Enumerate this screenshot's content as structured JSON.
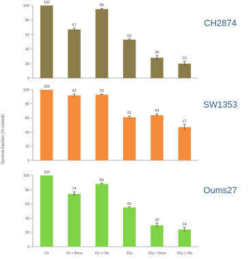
{
  "figure": {
    "ylabel": "Survival fraction (% control)"
  },
  "chart_data": [
    {
      "type": "bar",
      "title": "CH2874",
      "categories": [
        "Ctr",
        "Ctr + Roca",
        "Ctr + Ola",
        "2Gy",
        "2Gy + Roca",
        "2Gy + Ola"
      ],
      "values": [
        100,
        67,
        95,
        53,
        28,
        20
      ],
      "data_labels": [
        "100",
        "67",
        "95",
        "53",
        "28",
        "20"
      ],
      "errors": [
        0,
        2,
        1,
        1,
        3,
        3
      ],
      "ylim": [
        0,
        100
      ],
      "yticks": [
        "0",
        "20",
        "40",
        "60",
        "80",
        "100"
      ],
      "show_xticklabels": false,
      "color": "#8b7d4a",
      "grid": false
    },
    {
      "type": "bar",
      "title": "SW1353",
      "categories": [
        "Ctr",
        "Ctr + Roca",
        "Ctr + Ola",
        "2Gy",
        "2Gy + Roca",
        "2Gy + Ola"
      ],
      "values": [
        100,
        92,
        93,
        61,
        64,
        47
      ],
      "data_labels": [
        "100",
        "92",
        "93",
        "61",
        "64",
        "47"
      ],
      "errors": [
        0,
        2,
        1,
        2,
        2,
        4
      ],
      "ylim": [
        0,
        100
      ],
      "yticks": [
        "0",
        "20",
        "40",
        "60",
        "80",
        "100"
      ],
      "show_xticklabels": false,
      "color": "#f58c3c",
      "grid": false
    },
    {
      "type": "bar",
      "title": "Oums27",
      "categories": [
        "Ctr",
        "Ctr + Roca",
        "Ctr + Ola",
        "2Gy",
        "2Gy + Roca",
        "2Gy + Ola"
      ],
      "values": [
        100,
        74,
        88,
        55,
        30,
        24
      ],
      "data_labels": [
        "100",
        "74",
        "88",
        "55",
        "30",
        "24"
      ],
      "errors": [
        0,
        3,
        1,
        1,
        3,
        3
      ],
      "ylim": [
        0,
        100
      ],
      "yticks": [
        "0",
        "20",
        "40",
        "60",
        "80",
        "100"
      ],
      "show_xticklabels": true,
      "color": "#7ed444",
      "grid": false
    }
  ]
}
